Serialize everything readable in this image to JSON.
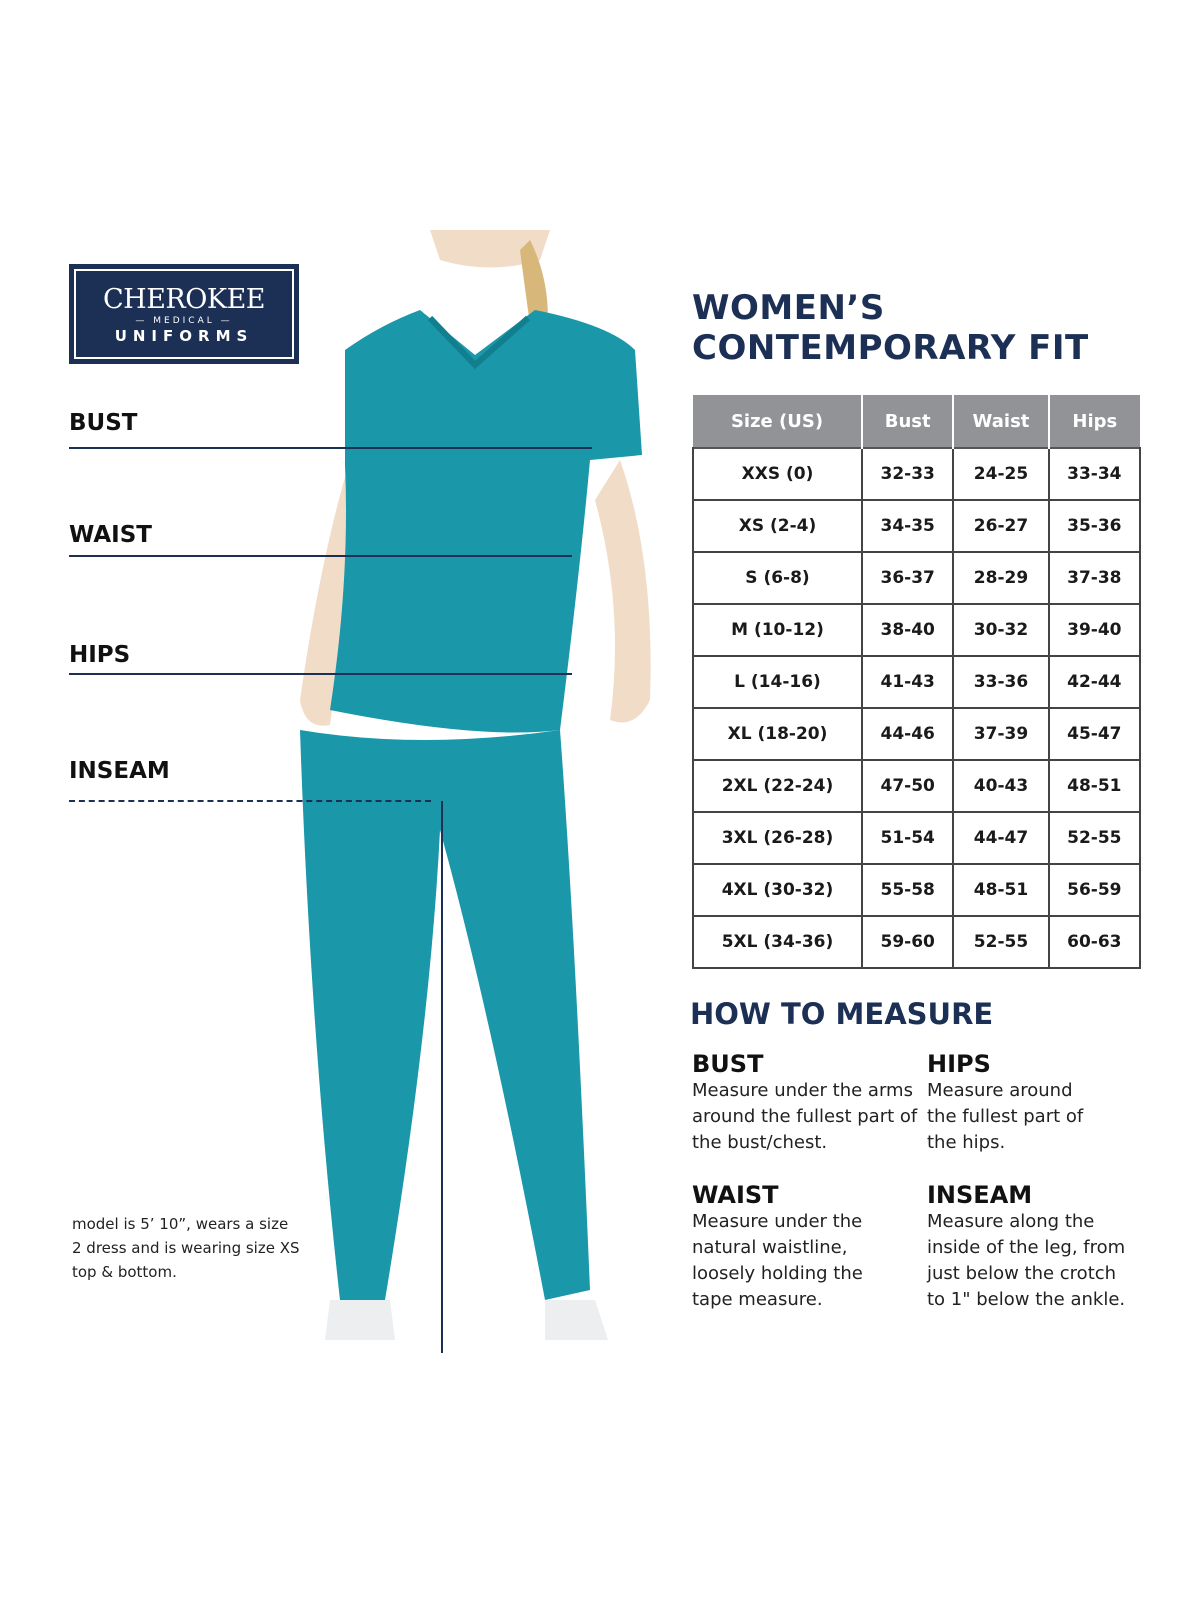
{
  "brand": {
    "name": "CHEROKEE",
    "sub": "MEDICAL",
    "line": "UNIFORMS"
  },
  "colors": {
    "navy": "#1c2f55",
    "teal": "#1a97a8",
    "table_header": "#919396"
  },
  "measure_lines": {
    "bust": "BUST",
    "waist": "WAIST",
    "hips": "HIPS",
    "inseam": "INSEAM"
  },
  "model_note": "model is 5’ 10”, wears a size 2 dress and is wearing size XS top & bottom.",
  "title": {
    "line1": "WOMEN’S",
    "line2": "CONTEMPORARY FIT"
  },
  "table": {
    "headers": [
      "Size (US)",
      "Bust",
      "Waist",
      "Hips"
    ],
    "rows": [
      [
        "XXS (0)",
        "32-33",
        "24-25",
        "33-34"
      ],
      [
        "XS (2-4)",
        "34-35",
        "26-27",
        "35-36"
      ],
      [
        "S (6-8)",
        "36-37",
        "28-29",
        "37-38"
      ],
      [
        "M (10-12)",
        "38-40",
        "30-32",
        "39-40"
      ],
      [
        "L (14-16)",
        "41-43",
        "33-36",
        "42-44"
      ],
      [
        "XL (18-20)",
        "44-46",
        "37-39",
        "45-47"
      ],
      [
        "2XL (22-24)",
        "47-50",
        "40-43",
        "48-51"
      ],
      [
        "3XL (26-28)",
        "51-54",
        "44-47",
        "52-55"
      ],
      [
        "4XL (30-32)",
        "55-58",
        "48-51",
        "56-59"
      ],
      [
        "5XL (34-36)",
        "59-60",
        "52-55",
        "60-63"
      ]
    ]
  },
  "how_to_measure": {
    "title": "HOW TO MEASURE",
    "bust": {
      "heading": "BUST",
      "text": "Measure under the arms around the fullest part of the bust/chest."
    },
    "hips": {
      "heading": "HIPS",
      "text": "Measure around the fullest part of the hips."
    },
    "waist": {
      "heading": "WAIST",
      "text": "Measure under the natural waistline, loosely holding the tape measure."
    },
    "inseam": {
      "heading": "INSEAM",
      "text": "Measure along the inside of the leg, from just below the crotch to 1\" below the ankle."
    }
  }
}
